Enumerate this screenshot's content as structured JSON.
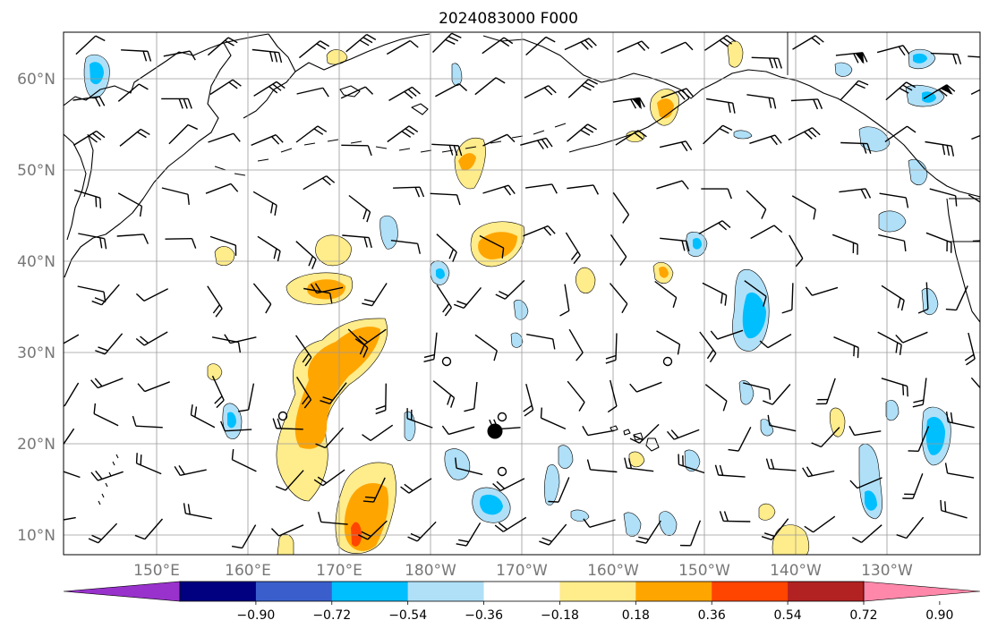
{
  "title": "2024083000 F000",
  "lon_labels": [
    "150°E",
    "160°E",
    "170°E",
    "180°W",
    "170°W",
    "160°W",
    "150°W",
    "140°W",
    "130°W"
  ],
  "lat_labels": [
    "60°N",
    "50°N",
    "40°N",
    "30°N",
    "20°N",
    "10°N"
  ],
  "colorbar": {
    "labels": [
      "−0.90",
      "−0.72",
      "−0.54",
      "−0.36",
      "−0.18",
      "0.18",
      "0.36",
      "0.54",
      "0.72",
      "0.90"
    ],
    "colors": [
      "#9932cc",
      "#000080",
      "#3a5fcd",
      "#00bfff",
      "#b0e0f8",
      "#ffffff",
      "#ffec8b",
      "#ffa500",
      "#ff4500",
      "#b22222",
      "#ff88aa"
    ]
  },
  "colors": {
    "neg1": "#b0e0f8",
    "neg2": "#00bfff",
    "pos1": "#ffec8b",
    "pos2": "#ffa500",
    "pos3": "#ff4500"
  }
}
